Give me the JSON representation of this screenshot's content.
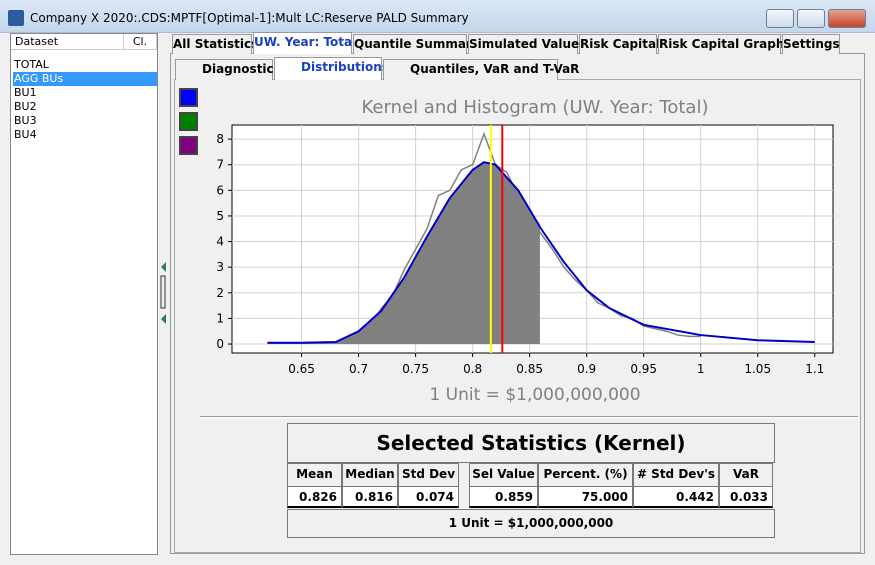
{
  "window": {
    "title": "Company X 2020:.CDS:MPTF[Optimal-1]:Mult LC:Reserve PALD Summary"
  },
  "sidebar": {
    "headers": [
      "Dataset",
      "Cl."
    ],
    "items": [
      "TOTAL",
      "AGG BUs",
      "BU1",
      "BU2",
      "BU3",
      "BU4"
    ],
    "selected": 1
  },
  "tabs": {
    "items": [
      "All Statistics",
      "UW. Year: Total",
      "Quantile Summary",
      "Simulated Values",
      "Risk Capital",
      "Risk Capital Graphs",
      "Settings"
    ],
    "active": 1
  },
  "subtabs": {
    "items": [
      "Diagnostics",
      "Distributions",
      "Quantiles, VaR and T-VaR"
    ],
    "active": 1
  },
  "swatches": [
    "#0000ff",
    "#008000",
    "#800080"
  ],
  "chart_data": {
    "type": "kernel-histogram",
    "title": "Kernel and Histogram (UW. Year: Total)",
    "x_label": "1 Unit = $1,000,000,000",
    "xlim": [
      0.589,
      1.116
    ],
    "ylim": [
      -0.35,
      8.55
    ],
    "xticks": [
      0.65,
      0.7,
      0.75,
      0.8,
      0.85,
      0.9,
      0.95,
      1,
      1.05,
      1.1
    ],
    "yticks": [
      0,
      1,
      2,
      3,
      4,
      5,
      6,
      7,
      8
    ],
    "grid": true,
    "series": [
      {
        "color": "#808080",
        "x": [
          0.69,
          0.7,
          0.71,
          0.72,
          0.73,
          0.74,
          0.75,
          0.76,
          0.77,
          0.78,
          0.79,
          0.8,
          0.81,
          0.82,
          0.83,
          0.84,
          0.85,
          0.86,
          0.87,
          0.88,
          0.89,
          0.9,
          0.91,
          0.92,
          0.93,
          0.94,
          0.95,
          0.96,
          0.97,
          0.98,
          0.99,
          1
        ],
        "values": [
          0.2,
          0.4,
          0.7,
          1.4,
          1.9,
          2.9,
          3.7,
          4.5,
          5.8,
          6,
          6.8,
          7,
          8.2,
          7,
          6.7,
          5.8,
          5,
          4.3,
          3.7,
          3,
          2.5,
          2.1,
          1.6,
          1.4,
          1.1,
          1,
          0.7,
          0.6,
          0.5,
          0.35,
          0.3,
          0.3
        ]
      },
      {
        "color": "#0000cc",
        "x": [
          0.62,
          0.65,
          0.68,
          0.7,
          0.72,
          0.74,
          0.76,
          0.78,
          0.8,
          0.81,
          0.82,
          0.84,
          0.86,
          0.88,
          0.9,
          0.92,
          0.95,
          1,
          1.05,
          1.1
        ],
        "values": [
          0.05,
          0.05,
          0.08,
          0.5,
          1.3,
          2.6,
          4.2,
          5.7,
          6.8,
          7.1,
          7,
          6,
          4.5,
          3.2,
          2.1,
          1.4,
          0.75,
          0.35,
          0.15,
          0.08
        ]
      }
    ],
    "fill_to": 0.859,
    "fill_color": "#808080",
    "vlines": [
      {
        "x": 0.816,
        "color": "#ffff00"
      },
      {
        "x": 0.826,
        "color": "#ff0000"
      }
    ]
  },
  "statistics": {
    "title": "Selected Statistics (Kernel)",
    "headers": [
      "Mean",
      "Median",
      "Std Dev",
      "Sel Value",
      "Percent. (%)",
      "# Std Dev's",
      "VaR"
    ],
    "values": [
      "0.826",
      "0.816",
      "0.074",
      "0.859",
      "75.000",
      "0.442",
      "0.033"
    ],
    "footer": "1 Unit = $1,000,000,000"
  }
}
